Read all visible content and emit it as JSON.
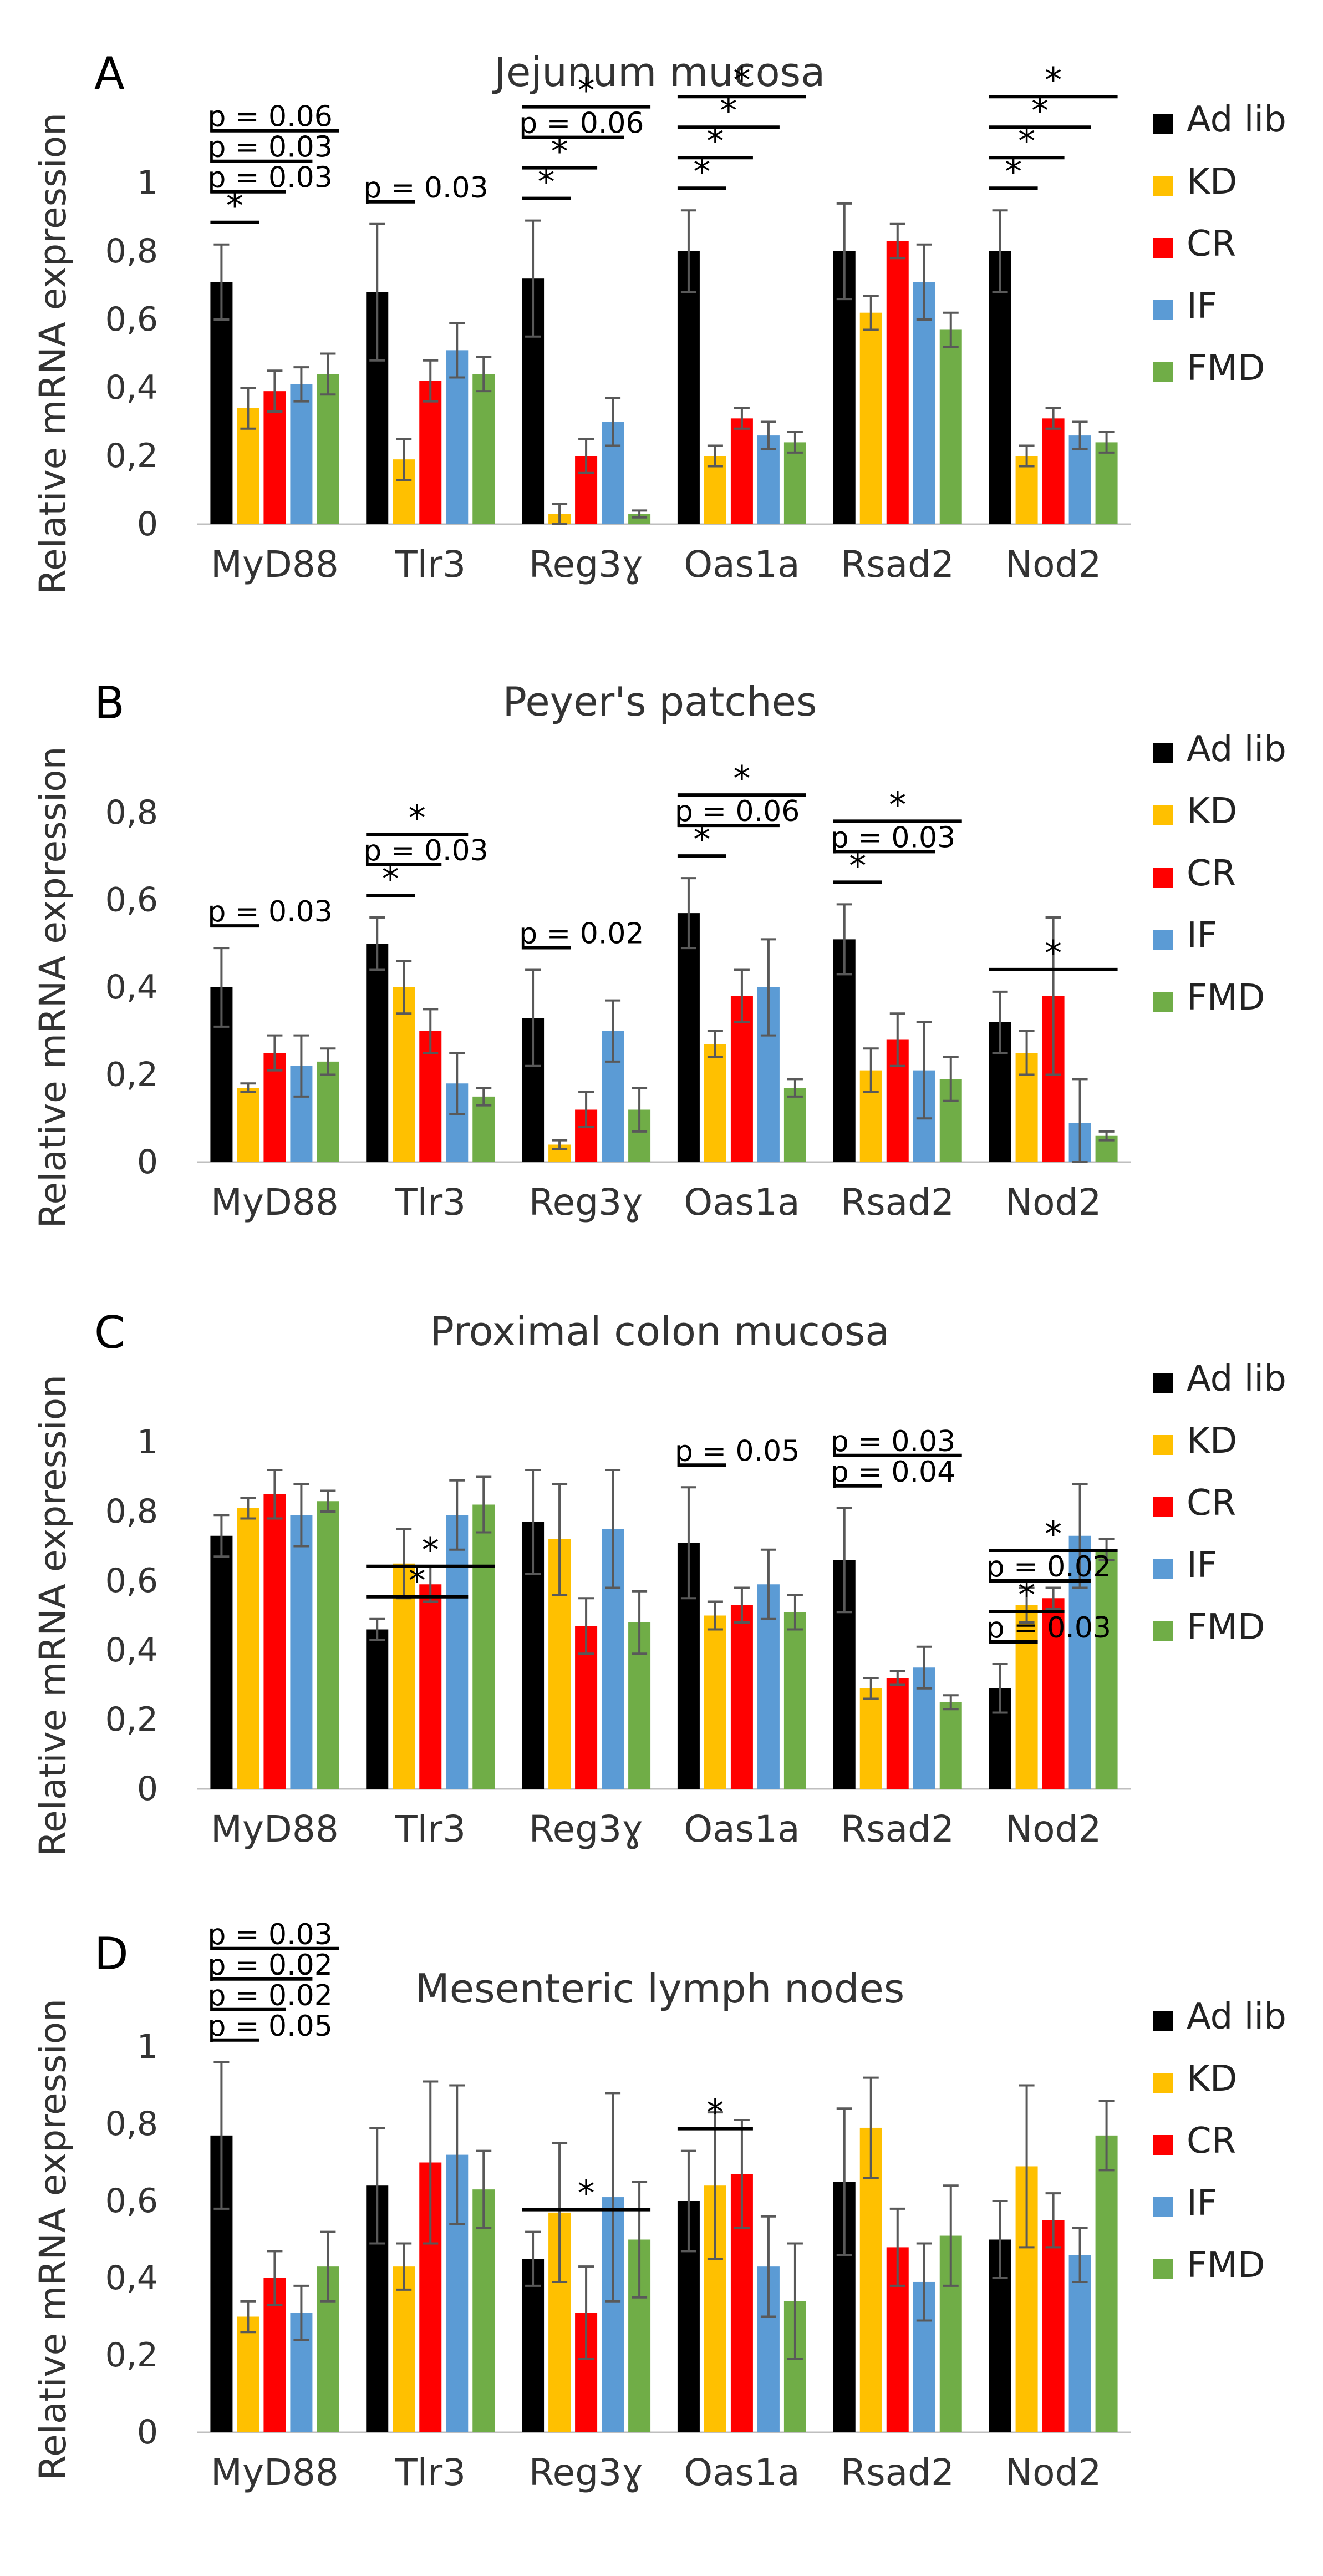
{
  "chart_data": [
    {
      "type": "bar",
      "panel": "A",
      "title": "Jejunum mucosa",
      "ylabel": "Relative mRNA expression",
      "xlabel": "",
      "ylim": [
        0,
        1
      ],
      "yticks": [
        "0",
        "0,2",
        "0,4",
        "0,6",
        "0,8",
        "1"
      ],
      "categories": [
        "MyD88",
        "Tlr3",
        "Reg3ɣ",
        "Oas1a",
        "Rsad2",
        "Nod2"
      ],
      "series": [
        {
          "name": "Ad lib",
          "color": "#000000",
          "values": [
            0.71,
            0.68,
            0.72,
            0.8,
            0.8,
            0.8
          ],
          "errors": [
            0.11,
            0.2,
            0.17,
            0.12,
            0.14,
            0.12
          ]
        },
        {
          "name": "KD",
          "color": "#FFC000",
          "values": [
            0.34,
            0.19,
            0.03,
            0.2,
            0.62,
            0.2
          ],
          "errors": [
            0.06,
            0.06,
            0.03,
            0.03,
            0.05,
            0.03
          ]
        },
        {
          "name": "CR",
          "color": "#FF0000",
          "values": [
            0.39,
            0.42,
            0.2,
            0.31,
            0.83,
            0.31
          ],
          "errors": [
            0.06,
            0.06,
            0.05,
            0.03,
            0.05,
            0.03
          ]
        },
        {
          "name": "IF",
          "color": "#5B9BD5",
          "values": [
            0.41,
            0.51,
            0.3,
            0.26,
            0.71,
            0.26
          ],
          "errors": [
            0.05,
            0.08,
            0.07,
            0.04,
            0.11,
            0.04
          ]
        },
        {
          "name": "FMD",
          "color": "#70AD47",
          "values": [
            0.44,
            0.44,
            0.03,
            0.24,
            0.57,
            0.24
          ],
          "errors": [
            0.06,
            0.05,
            0.01,
            0.03,
            0.05,
            0.03
          ]
        }
      ],
      "annotations": [
        {
          "category": 0,
          "to": 1,
          "label": "*",
          "level": 0
        },
        {
          "category": 0,
          "to": 2,
          "label": "p = 0.03",
          "level": 1
        },
        {
          "category": 0,
          "to": 3,
          "label": "p = 0.03",
          "level": 2
        },
        {
          "category": 0,
          "to": 4,
          "label": "p = 0.06",
          "level": 3
        },
        {
          "category": 1,
          "to": 1,
          "label": "p = 0.03",
          "level": 0
        },
        {
          "category": 2,
          "to": 1,
          "label": "*",
          "level": 0
        },
        {
          "category": 2,
          "to": 2,
          "label": "*",
          "level": 1
        },
        {
          "category": 2,
          "to": 3,
          "label": "p = 0.06",
          "level": 2
        },
        {
          "category": 2,
          "to": 4,
          "label": "*",
          "level": 3
        },
        {
          "category": 3,
          "to": 1,
          "label": "*",
          "level": 0
        },
        {
          "category": 3,
          "to": 2,
          "label": "*",
          "level": 1
        },
        {
          "category": 3,
          "to": 3,
          "label": "*",
          "level": 2
        },
        {
          "category": 3,
          "to": 4,
          "label": "*",
          "level": 3
        },
        {
          "category": 5,
          "to": 1,
          "label": "*",
          "level": 0
        },
        {
          "category": 5,
          "to": 2,
          "label": "*",
          "level": 1
        },
        {
          "category": 5,
          "to": 3,
          "label": "*",
          "level": 2
        },
        {
          "category": 5,
          "to": 4,
          "label": "*",
          "level": 3
        }
      ]
    },
    {
      "type": "bar",
      "panel": "B",
      "title": "Peyer's patches",
      "ylabel": "Relative mRNA expression",
      "xlabel": "",
      "ylim": [
        0,
        0.8
      ],
      "yticks": [
        "0",
        "0,2",
        "0,4",
        "0,6",
        "0,8"
      ],
      "categories": [
        "MyD88",
        "Tlr3",
        "Reg3ɣ",
        "Oas1a",
        "Rsad2",
        "Nod2"
      ],
      "series": [
        {
          "name": "Ad lib",
          "color": "#000000",
          "values": [
            0.4,
            0.5,
            0.33,
            0.57,
            0.51,
            0.32
          ],
          "errors": [
            0.09,
            0.06,
            0.11,
            0.08,
            0.08,
            0.07
          ]
        },
        {
          "name": "KD",
          "color": "#FFC000",
          "values": [
            0.17,
            0.4,
            0.04,
            0.27,
            0.21,
            0.25
          ],
          "errors": [
            0.01,
            0.06,
            0.01,
            0.03,
            0.05,
            0.05
          ]
        },
        {
          "name": "CR",
          "color": "#FF0000",
          "values": [
            0.25,
            0.3,
            0.12,
            0.38,
            0.28,
            0.38
          ],
          "errors": [
            0.04,
            0.05,
            0.04,
            0.06,
            0.06,
            0.18
          ]
        },
        {
          "name": "IF",
          "color": "#5B9BD5",
          "values": [
            0.22,
            0.18,
            0.3,
            0.4,
            0.21,
            0.09
          ],
          "errors": [
            0.07,
            0.07,
            0.07,
            0.11,
            0.11,
            0.1
          ]
        },
        {
          "name": "FMD",
          "color": "#70AD47",
          "values": [
            0.23,
            0.15,
            0.12,
            0.17,
            0.19,
            0.06
          ],
          "errors": [
            0.03,
            0.02,
            0.05,
            0.02,
            0.05,
            0.01
          ]
        }
      ],
      "annotations": [
        {
          "category": 0,
          "to": 1,
          "label": "p = 0.03",
          "level": 0
        },
        {
          "category": 1,
          "to": 1,
          "label": "*",
          "level": 0
        },
        {
          "category": 1,
          "to": 2,
          "label": "p = 0.03",
          "level": 1
        },
        {
          "category": 1,
          "to": 3,
          "label": "*",
          "level": 2
        },
        {
          "category": 2,
          "to": 1,
          "label": "p = 0.02",
          "level": 0
        },
        {
          "category": 3,
          "to": 1,
          "label": "*",
          "level": 0
        },
        {
          "category": 3,
          "to": 3,
          "label": "p = 0.06",
          "level": 1
        },
        {
          "category": 3,
          "to": 4,
          "label": "*",
          "level": 2
        },
        {
          "category": 4,
          "to": 1,
          "label": "*",
          "level": 0
        },
        {
          "category": 4,
          "to": 3,
          "label": "p = 0.03",
          "level": 1
        },
        {
          "category": 4,
          "to": 4,
          "label": "*",
          "level": 2
        },
        {
          "category": 5,
          "to": 4,
          "label": "*",
          "level": 0
        }
      ]
    },
    {
      "type": "bar",
      "panel": "C",
      "title": "Proximal colon mucosa",
      "ylabel": "Relative mRNA expression",
      "xlabel": "",
      "ylim": [
        0,
        1
      ],
      "yticks": [
        "0",
        "0,2",
        "0,4",
        "0,6",
        "0,8",
        "1"
      ],
      "categories": [
        "MyD88",
        "Tlr3",
        "Reg3ɣ",
        "Oas1a",
        "Rsad2",
        "Nod2"
      ],
      "series": [
        {
          "name": "Ad lib",
          "color": "#000000",
          "values": [
            0.73,
            0.46,
            0.77,
            0.71,
            0.66,
            0.29
          ],
          "errors": [
            0.06,
            0.03,
            0.15,
            0.16,
            0.15,
            0.07
          ]
        },
        {
          "name": "KD",
          "color": "#FFC000",
          "values": [
            0.81,
            0.65,
            0.72,
            0.5,
            0.29,
            0.53
          ],
          "errors": [
            0.03,
            0.1,
            0.16,
            0.04,
            0.03,
            0.05
          ]
        },
        {
          "name": "CR",
          "color": "#FF0000",
          "values": [
            0.85,
            0.59,
            0.47,
            0.53,
            0.32,
            0.55
          ],
          "errors": [
            0.07,
            0.05,
            0.08,
            0.05,
            0.02,
            0.03
          ]
        },
        {
          "name": "IF",
          "color": "#5B9BD5",
          "values": [
            0.79,
            0.79,
            0.75,
            0.59,
            0.35,
            0.73
          ],
          "errors": [
            0.09,
            0.1,
            0.17,
            0.1,
            0.06,
            0.15
          ]
        },
        {
          "name": "FMD",
          "color": "#70AD47",
          "values": [
            0.83,
            0.82,
            0.48,
            0.51,
            0.25,
            0.69
          ],
          "errors": [
            0.03,
            0.08,
            0.09,
            0.05,
            0.02,
            0.03
          ]
        }
      ],
      "annotations": [
        {
          "category": 1,
          "to": 3,
          "label": "*",
          "level": 0
        },
        {
          "category": 1,
          "to": 4,
          "label": "*",
          "level": 1
        },
        {
          "category": 3,
          "to": 1,
          "label": "p = 0.05",
          "level": 0
        },
        {
          "category": 4,
          "to": 1,
          "label": "p = 0.04",
          "level": 0
        },
        {
          "category": 4,
          "to": 4,
          "label": "p = 0.03",
          "level": 1
        },
        {
          "category": 5,
          "to": 1,
          "label": "p = 0.03",
          "level": 0
        },
        {
          "category": 5,
          "to": 2,
          "label": "*",
          "level": 1
        },
        {
          "category": 5,
          "to": 3,
          "label": "p = 0.02",
          "level": 2
        },
        {
          "category": 5,
          "to": 4,
          "label": "*",
          "level": 3
        }
      ]
    },
    {
      "type": "bar",
      "panel": "D",
      "title": "Mesenteric lymph nodes",
      "ylabel": "Relative mRNA expression",
      "xlabel": "",
      "ylim": [
        0,
        1
      ],
      "yticks": [
        "0",
        "0,2",
        "0,4",
        "0,6",
        "0,8",
        "1"
      ],
      "categories": [
        "MyD88",
        "Tlr3",
        "Reg3ɣ",
        "Oas1a",
        "Rsad2",
        "Nod2"
      ],
      "series": [
        {
          "name": "Ad lib",
          "color": "#000000",
          "values": [
            0.77,
            0.64,
            0.45,
            0.6,
            0.65,
            0.5
          ],
          "errors": [
            0.19,
            0.15,
            0.07,
            0.13,
            0.19,
            0.1
          ]
        },
        {
          "name": "KD",
          "color": "#FFC000",
          "values": [
            0.3,
            0.43,
            0.57,
            0.64,
            0.79,
            0.69
          ],
          "errors": [
            0.04,
            0.06,
            0.18,
            0.19,
            0.13,
            0.21
          ]
        },
        {
          "name": "CR",
          "color": "#FF0000",
          "values": [
            0.4,
            0.7,
            0.31,
            0.67,
            0.48,
            0.55
          ],
          "errors": [
            0.07,
            0.21,
            0.12,
            0.14,
            0.1,
            0.07
          ]
        },
        {
          "name": "IF",
          "color": "#5B9BD5",
          "values": [
            0.31,
            0.72,
            0.61,
            0.43,
            0.39,
            0.46
          ],
          "errors": [
            0.07,
            0.18,
            0.27,
            0.13,
            0.1,
            0.07
          ]
        },
        {
          "name": "FMD",
          "color": "#70AD47",
          "values": [
            0.43,
            0.63,
            0.5,
            0.34,
            0.51,
            0.77
          ],
          "errors": [
            0.09,
            0.1,
            0.15,
            0.15,
            0.13,
            0.09
          ]
        }
      ],
      "annotations": [
        {
          "category": 0,
          "to": 1,
          "label": "p = 0.05",
          "level": 0
        },
        {
          "category": 0,
          "to": 2,
          "label": "p = 0.02",
          "level": 1
        },
        {
          "category": 0,
          "to": 3,
          "label": "p = 0.02",
          "level": 2
        },
        {
          "category": 0,
          "to": 4,
          "label": "p = 0.03",
          "level": 3
        },
        {
          "category": 2,
          "to": 4,
          "label": "*",
          "level": 0
        },
        {
          "category": 3,
          "to": 2,
          "label": "*",
          "level": 0
        }
      ]
    }
  ]
}
